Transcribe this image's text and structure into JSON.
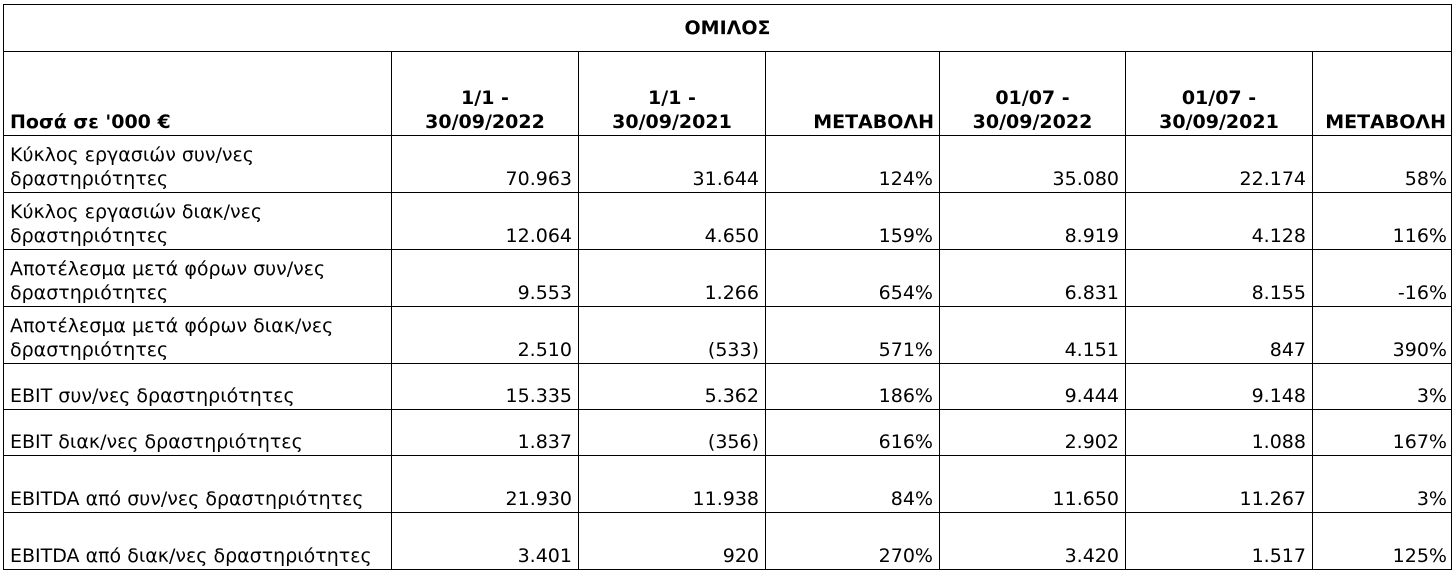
{
  "table": {
    "title": "ΟΜΙΛΟΣ",
    "headers": [
      "Ποσά σε '000 €",
      "1/1 - 30/09/2022",
      "1/1 - 30/09/2021",
      "ΜΕΤΑΒΟΛΗ",
      "01/07 - 30/09/2022",
      "01/07 - 30/09/2021",
      "ΜΕΤΑΒΟΛΗ"
    ],
    "header_lines": {
      "c1": [
        "1/1 -",
        "30/09/2022"
      ],
      "c2": [
        "1/1 -",
        "30/09/2021"
      ],
      "c4": [
        "01/07 -",
        "30/09/2022"
      ],
      "c5": [
        "01/07 -",
        "30/09/2021"
      ]
    },
    "rows": [
      {
        "label": "Κύκλος εργασιών  συν/νες δραστηριότητες",
        "values": [
          "70.963",
          "31.644",
          "124%",
          "35.080",
          "22.174",
          "58%"
        ]
      },
      {
        "label": "Κύκλος εργασιών  διακ/νες δραστηριότητες",
        "values": [
          "12.064",
          "4.650",
          "159%",
          "8.919",
          "4.128",
          "116%"
        ]
      },
      {
        "label": "Αποτέλεσμα μετά φόρων συν/νες δραστηριότητες",
        "values": [
          "9.553",
          "1.266",
          "654%",
          "6.831",
          "8.155",
          "-16%"
        ]
      },
      {
        "label": "Αποτέλεσμα μετά φόρων διακ/νες δραστηριότητες",
        "values": [
          "2.510",
          "(533)",
          "571%",
          "4.151",
          "847",
          "390%"
        ]
      },
      {
        "label": "EBIT συν/νες δραστηριότητες",
        "values": [
          "15.335",
          "5.362",
          "186%",
          "9.444",
          "9.148",
          "3%"
        ]
      },
      {
        "label": "EBIT διακ/νες δραστηριότητες",
        "values": [
          "1.837",
          "(356)",
          "616%",
          "2.902",
          "1.088",
          "167%"
        ]
      },
      {
        "label": "EBITDA από συν/νες δραστηριότητες",
        "values": [
          "21.930",
          "11.938",
          "84%",
          "11.650",
          "11.267",
          "3%"
        ]
      },
      {
        "label": "EBITDA από διακ/νες δραστηριότητες",
        "values": [
          "3.401",
          "920",
          "270%",
          "3.420",
          "1.517",
          "125%"
        ]
      }
    ]
  }
}
